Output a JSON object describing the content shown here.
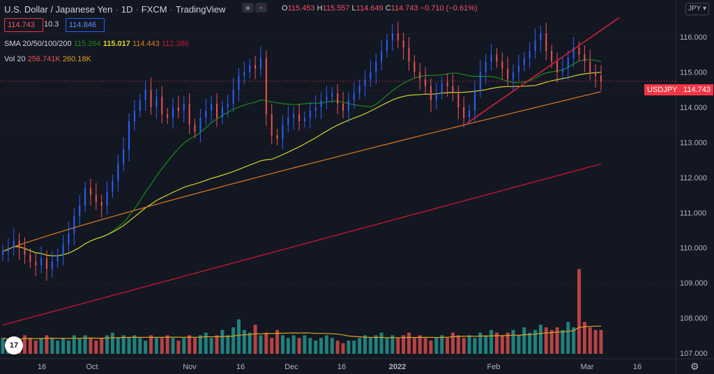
{
  "header": {
    "symbol_title": "U.S. Dollar / Japanese Yen",
    "interval": "1D",
    "source": "FXCM",
    "platform": "TradingView",
    "open_label": "O",
    "open": "115.453",
    "high_label": "H",
    "high": "115.557",
    "low_label": "L",
    "low": "114.649",
    "close_label": "C",
    "close": "114.743",
    "change": "−0.710 (−0.61%)",
    "sell_price": "114.743",
    "spread": "10.3",
    "buy_price": "114.846",
    "currency_button": "JPY"
  },
  "sma": {
    "label": "SMA 20/50/100/200",
    "v20": "115.264",
    "v50": "115.017",
    "v100": "114.443",
    "v200": "112.386"
  },
  "volume": {
    "label": "Vol 20",
    "v1": "256.741K",
    "v2": "260.18K"
  },
  "price_axis": {
    "labels": [
      "116.000",
      "115.000",
      "114.000",
      "113.000",
      "112.000",
      "111.000",
      "110.000",
      "109.000",
      "108.000",
      "107.000"
    ],
    "current_symbol": "USDJPY",
    "current_price": "114.743"
  },
  "time_axis": {
    "labels": [
      "16",
      "Oct",
      "Nov",
      "16",
      "Dec",
      "16",
      "2022",
      "Feb",
      "Mar",
      "16"
    ]
  },
  "colors": {
    "background": "#131722",
    "up": "#2962ff",
    "down": "#ef5350",
    "sma20": "#1b8a1b",
    "sma50": "#d4d42a",
    "sma100": "#e07b1f",
    "sma200": "#c0152f",
    "trendline": "#d9213a",
    "vol_up": "#26a69a",
    "vol_down": "#ef5350"
  },
  "icons": [
    "tradingview-logo-icon",
    "settings-gear-icon",
    "indicator-toggle-icon"
  ],
  "chart_data": {
    "type": "candlestick",
    "title": "U.S. Dollar / Japanese Yen",
    "ylim": [
      107.0,
      116.3
    ],
    "x_axis": "date",
    "series": [
      {
        "name": "SMA 20",
        "last": 115.264
      },
      {
        "name": "SMA 50",
        "last": 115.017
      },
      {
        "name": "SMA 100",
        "last": 114.443
      },
      {
        "name": "SMA 200",
        "last": 112.386
      }
    ],
    "close_approx": [
      109.9,
      110.0,
      110.2,
      110.0,
      109.8,
      109.6,
      109.5,
      109.7,
      109.4,
      109.6,
      109.8,
      110.1,
      110.4,
      110.9,
      111.2,
      111.7,
      111.5,
      111.3,
      111.2,
      111.6,
      111.9,
      112.4,
      112.8,
      113.6,
      113.9,
      114.2,
      114.5,
      114.0,
      114.3,
      113.8,
      113.7,
      114.0,
      113.9,
      114.1,
      113.5,
      113.3,
      113.7,
      113.9,
      114.1,
      113.7,
      114.0,
      114.1,
      114.5,
      114.9,
      115.0,
      115.2,
      115.1,
      115.4,
      113.8,
      113.2,
      113.1,
      113.5,
      113.7,
      113.8,
      113.6,
      113.7,
      113.9,
      114.0,
      114.2,
      114.3,
      114.4,
      114.1,
      113.9,
      114.2,
      114.4,
      114.6,
      114.8,
      115.0,
      115.3,
      115.6,
      115.9,
      116.1,
      115.9,
      115.7,
      115.3,
      115.0,
      114.8,
      114.6,
      114.2,
      114.4,
      114.7,
      114.6,
      114.4,
      114.0,
      113.7,
      113.9,
      114.5,
      115.0,
      115.3,
      115.5,
      115.3,
      115.1,
      114.8,
      115.0,
      115.2,
      115.4,
      115.6,
      115.9,
      116.1,
      115.6,
      115.3,
      115.0,
      115.1,
      115.4,
      115.7,
      115.5,
      115.3,
      115.0,
      114.9,
      114.743
    ],
    "volume_approx": [
      0.6,
      0.5,
      0.6,
      0.5,
      0.7,
      0.6,
      0.5,
      0.6,
      0.7,
      0.6,
      0.5,
      0.6,
      0.5,
      0.7,
      0.6,
      0.7,
      0.6,
      0.5,
      0.6,
      0.7,
      0.8,
      0.6,
      0.7,
      0.6,
      0.7,
      0.6,
      0.5,
      0.7,
      0.6,
      0.6,
      0.7,
      0.6,
      0.5,
      0.6,
      0.7,
      0.6,
      0.7,
      0.8,
      0.6,
      0.7,
      0.9,
      0.7,
      1.0,
      1.3,
      0.9,
      0.8,
      1.1,
      0.7,
      0.8,
      0.6,
      0.9,
      0.7,
      0.6,
      0.7,
      0.6,
      0.7,
      0.6,
      0.5,
      0.6,
      0.7,
      0.6,
      0.5,
      0.4,
      0.5,
      0.5,
      0.6,
      0.7,
      0.6,
      0.7,
      0.8,
      0.6,
      0.7,
      0.6,
      0.7,
      0.8,
      0.6,
      0.7,
      0.6,
      0.5,
      0.6,
      0.7,
      0.6,
      0.8,
      0.7,
      0.6,
      0.7,
      0.6,
      0.8,
      0.7,
      0.9,
      0.8,
      0.7,
      0.8,
      0.9,
      0.7,
      1.0,
      0.8,
      0.9,
      1.1,
      1.0,
      0.9,
      1.0,
      0.9,
      1.2,
      1.0,
      3.2,
      1.2,
      1.0,
      0.9,
      0.9
    ]
  }
}
